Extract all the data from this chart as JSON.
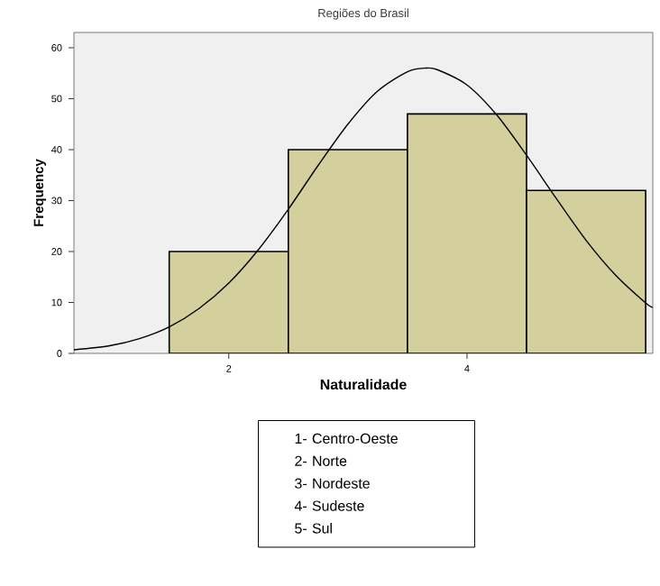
{
  "chart_data": {
    "type": "histogram",
    "title": "Regiões do Brasil",
    "xlabel": "Naturalidade",
    "ylabel": "Frequency",
    "xlim": [
      0.7,
      5.56
    ],
    "xticks": [
      2,
      4
    ],
    "ylim": [
      0,
      63
    ],
    "yticks": [
      0,
      10,
      20,
      30,
      40,
      50,
      60
    ],
    "grid": false,
    "series": [
      {
        "bins": [
          1.5,
          2.5,
          3.5,
          4.5,
          5.5
        ],
        "values": [
          20,
          40,
          47,
          32
        ],
        "color": "#d3d09d"
      },
      {
        "type": "line",
        "color": "#000000",
        "marker": "none",
        "x": [
          0.7,
          1.0,
          1.25,
          1.5,
          1.75,
          2.0,
          2.25,
          2.5,
          2.75,
          3.0,
          3.25,
          3.5,
          3.65,
          3.75,
          4.0,
          4.25,
          4.5,
          4.75,
          5.0,
          5.25,
          5.5,
          5.56
        ],
        "values": [
          0.7,
          1.5,
          2.9,
          5.2,
          8.8,
          13.8,
          20.4,
          28.3,
          36.9,
          45.0,
          51.5,
          55.3,
          56.0,
          55.7,
          52.7,
          46.8,
          38.9,
          30.4,
          22.2,
          15.3,
          9.9,
          9.0
        ]
      }
    ],
    "annotations": [
      "1- Centro-Oeste",
      "2- Norte",
      "3- Nordeste",
      "4- Sudeste",
      "5- Sul"
    ]
  }
}
